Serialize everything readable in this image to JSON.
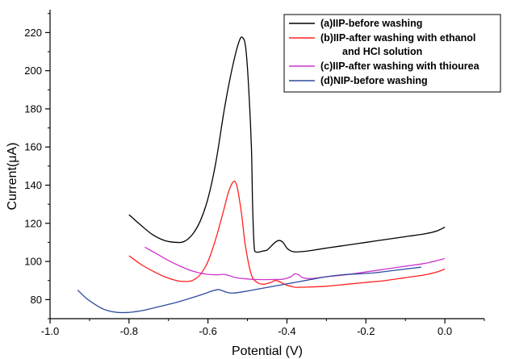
{
  "chart_data": {
    "type": "line",
    "title": "",
    "xlabel": "Potential (V)",
    "ylabel": "Current(μA)",
    "xlim": [
      -1.0,
      0.1
    ],
    "ylim": [
      70,
      232
    ],
    "x_ticks": [
      -1.0,
      -0.8,
      -0.6,
      -0.4,
      -0.2,
      0.0
    ],
    "x_tick_labels": [
      "-1.0",
      "-0.8",
      "-0.6",
      "-0.4",
      "-0.2",
      "0.0"
    ],
    "y_ticks": [
      80,
      100,
      120,
      140,
      160,
      180,
      200,
      220
    ],
    "y_tick_labels": [
      "80",
      "100",
      "120",
      "140",
      "160",
      "180",
      "200",
      "220"
    ],
    "grid": false,
    "legend_position": "top-right",
    "series": [
      {
        "name": "(a)IIP-before washing",
        "legend_lines": [
          "(a)IIP-before washing"
        ],
        "color": "#000000",
        "x": [
          -0.8,
          -0.77,
          -0.74,
          -0.71,
          -0.68,
          -0.66,
          -0.64,
          -0.62,
          -0.6,
          -0.58,
          -0.56,
          -0.545,
          -0.53,
          -0.52,
          -0.513,
          -0.505,
          -0.498,
          -0.49,
          -0.487,
          -0.483,
          -0.478,
          -0.47,
          -0.46,
          -0.45,
          -0.44,
          -0.43,
          -0.42,
          -0.41,
          -0.4,
          -0.39,
          -0.38,
          -0.36,
          -0.34,
          -0.3,
          -0.25,
          -0.2,
          -0.15,
          -0.1,
          -0.05,
          -0.02,
          0.0
        ],
        "y": [
          124.5,
          119,
          114,
          111,
          110,
          110.5,
          114,
          121,
          133,
          152,
          178,
          195,
          209,
          216,
          217.5,
          213,
          195,
          160,
          130,
          108,
          105,
          105,
          105.5,
          106,
          108,
          110,
          111,
          110,
          107,
          105.5,
          105,
          105.2,
          105.7,
          107,
          108.5,
          110,
          111.5,
          113,
          114.5,
          116,
          118
        ]
      },
      {
        "name": "(b)IIP-after washing with ethanol and HCl solution",
        "legend_lines": [
          "(b)IIP-after washing with ethanol",
          "and HCl solution"
        ],
        "color": "#ff2020",
        "x": [
          -0.8,
          -0.77,
          -0.74,
          -0.71,
          -0.68,
          -0.66,
          -0.64,
          -0.62,
          -0.6,
          -0.58,
          -0.56,
          -0.55,
          -0.54,
          -0.532,
          -0.525,
          -0.515,
          -0.505,
          -0.49,
          -0.475,
          -0.46,
          -0.45,
          -0.44,
          -0.43,
          -0.42,
          -0.41,
          -0.4,
          -0.39,
          -0.38,
          -0.36,
          -0.3,
          -0.25,
          -0.2,
          -0.15,
          -0.1,
          -0.05,
          -0.02,
          0.0
        ],
        "y": [
          103,
          98.5,
          95,
          92,
          90,
          89.5,
          90,
          93,
          100,
          112,
          127,
          135,
          140.5,
          142,
          138,
          125,
          108,
          93,
          89,
          88,
          88.5,
          89,
          90,
          89.5,
          88.5,
          87.5,
          87,
          86.5,
          86.5,
          87,
          88,
          89,
          90,
          91.5,
          93,
          94.5,
          96
        ]
      },
      {
        "name": "(c)IIP-after washing with thiourea",
        "legend_lines": [
          "(c)IIP-after washing with thiourea"
        ],
        "color": "#cc33cc",
        "x": [
          -0.76,
          -0.73,
          -0.7,
          -0.67,
          -0.64,
          -0.61,
          -0.58,
          -0.56,
          -0.545,
          -0.53,
          -0.5,
          -0.47,
          -0.44,
          -0.41,
          -0.39,
          -0.38,
          -0.37,
          -0.36,
          -0.34,
          -0.3,
          -0.25,
          -0.2,
          -0.15,
          -0.1,
          -0.05,
          0.0
        ],
        "y": [
          107.5,
          104,
          100.5,
          97.5,
          95,
          93.5,
          93,
          93.2,
          92.5,
          91.5,
          90.8,
          90.5,
          90.5,
          90.7,
          92,
          93.5,
          93,
          91.5,
          91,
          92,
          93,
          94.5,
          96,
          97.5,
          99,
          101.5
        ]
      },
      {
        "name": "(d)NIP-before washing",
        "legend_lines": [
          "(d)NIP-before washing"
        ],
        "color": "#2e4a9e",
        "x": [
          -0.93,
          -0.91,
          -0.89,
          -0.87,
          -0.85,
          -0.83,
          -0.81,
          -0.79,
          -0.76,
          -0.72,
          -0.68,
          -0.64,
          -0.61,
          -0.59,
          -0.575,
          -0.565,
          -0.555,
          -0.545,
          -0.53,
          -0.5,
          -0.46,
          -0.42,
          -0.38,
          -0.34,
          -0.3,
          -0.26,
          -0.22,
          -0.18,
          -0.14,
          -0.1,
          -0.06
        ],
        "y": [
          85,
          81,
          78,
          75.5,
          74,
          73.3,
          73.2,
          73.5,
          74.5,
          76.5,
          78.5,
          81,
          83,
          84.5,
          85.2,
          84.8,
          84,
          83.5,
          83.5,
          84.5,
          86,
          87.5,
          89,
          90.5,
          92,
          93,
          93.5,
          94,
          95,
          96,
          97
        ]
      }
    ]
  }
}
